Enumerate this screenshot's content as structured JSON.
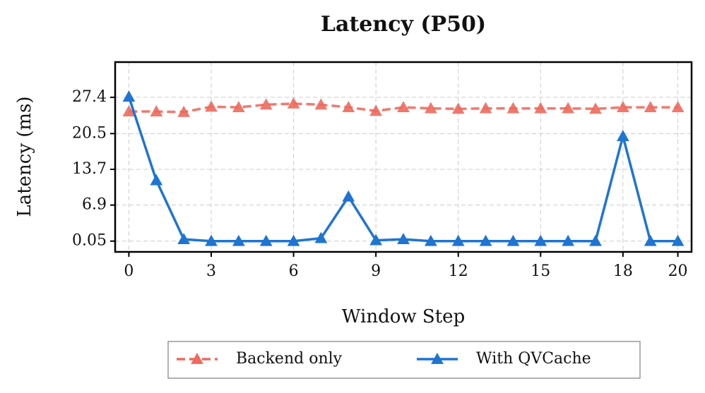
{
  "chart_data": {
    "type": "line",
    "title": "Latency (P50)",
    "xlabel": "Window Step",
    "ylabel": "Latency (ms)",
    "x": [
      0,
      1,
      2,
      3,
      4,
      5,
      6,
      7,
      8,
      9,
      10,
      11,
      12,
      13,
      14,
      15,
      16,
      17,
      18,
      19,
      20
    ],
    "series": [
      {
        "name": "Backend only",
        "color": "#ee6a5e",
        "dash": true,
        "values": [
          24.7,
          24.7,
          24.6,
          25.6,
          25.5,
          26.0,
          26.2,
          26.0,
          25.5,
          24.8,
          25.5,
          25.3,
          25.2,
          25.3,
          25.3,
          25.3,
          25.3,
          25.2,
          25.5,
          25.5,
          25.5
        ]
      },
      {
        "name": "With QVCache",
        "color": "#1f74d2",
        "dash": false,
        "values": [
          27.5,
          11.6,
          0.4,
          0.05,
          0.05,
          0.05,
          0.05,
          0.6,
          8.5,
          0.2,
          0.4,
          0.05,
          0.05,
          0.05,
          0.05,
          0.05,
          0.05,
          0.05,
          20.0,
          0.05,
          0.05
        ]
      }
    ],
    "xlim": [
      -0.5,
      20.5
    ],
    "xticks": [
      0,
      3,
      6,
      9,
      12,
      15,
      18,
      20
    ],
    "ylim": [
      -2,
      34.1
    ],
    "yticks": [
      0.05,
      6.9,
      13.7,
      20.5,
      27.4
    ],
    "grid": true,
    "legend": "bottom"
  }
}
